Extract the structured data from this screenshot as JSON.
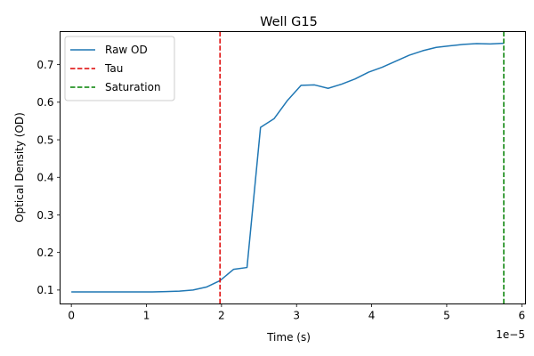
{
  "chart_data": {
    "type": "line",
    "title": "Well G15",
    "xlabel": "Time (s)",
    "ylabel": "Optical Density (OD)",
    "x_offset_label": "1e−5",
    "xlim": [
      -1.5e-06,
      6.05e-05
    ],
    "ylim": [
      0.063,
      0.788
    ],
    "x_ticks": [
      0,
      1e-05,
      2e-05,
      3e-05,
      4e-05,
      5e-05,
      6e-05
    ],
    "x_tick_labels": [
      "0",
      "1",
      "2",
      "3",
      "4",
      "5",
      "6"
    ],
    "y_ticks": [
      0.1,
      0.2,
      0.3,
      0.4,
      0.5,
      0.6,
      0.7
    ],
    "y_tick_labels": [
      "0.1",
      "0.2",
      "0.3",
      "0.4",
      "0.5",
      "0.6",
      "0.7"
    ],
    "grid": false,
    "legend_position": "top-left",
    "series": [
      {
        "name": "Raw OD",
        "color": "#1f77b4",
        "style": "solid",
        "x": [
          0,
          3.6e-06,
          7.2e-06,
          1.08e-05,
          1.26e-05,
          1.44e-05,
          1.62e-05,
          1.8e-05,
          1.98e-05,
          2.16e-05,
          2.34e-05,
          2.52e-05,
          2.7e-05,
          2.88e-05,
          3.06e-05,
          3.24e-05,
          3.42e-05,
          3.6e-05,
          3.78e-05,
          3.96e-05,
          4.14e-05,
          4.32e-05,
          4.5e-05,
          4.68e-05,
          4.86e-05,
          5.04e-05,
          5.22e-05,
          5.4e-05,
          5.58e-05,
          5.76e-05
        ],
        "y": [
          0.095,
          0.095,
          0.095,
          0.095,
          0.096,
          0.097,
          0.1,
          0.108,
          0.125,
          0.155,
          0.16,
          0.533,
          0.556,
          0.605,
          0.645,
          0.646,
          0.637,
          0.648,
          0.662,
          0.68,
          0.693,
          0.709,
          0.725,
          0.737,
          0.746,
          0.75,
          0.754,
          0.756,
          0.755,
          0.757
        ]
      },
      {
        "name": "Tau",
        "color": "#dd0000",
        "style": "dashed",
        "vertical_x": 1.98e-05
      },
      {
        "name": "Saturation",
        "color": "#008000",
        "style": "dashed",
        "vertical_x": 5.76e-05
      }
    ]
  }
}
